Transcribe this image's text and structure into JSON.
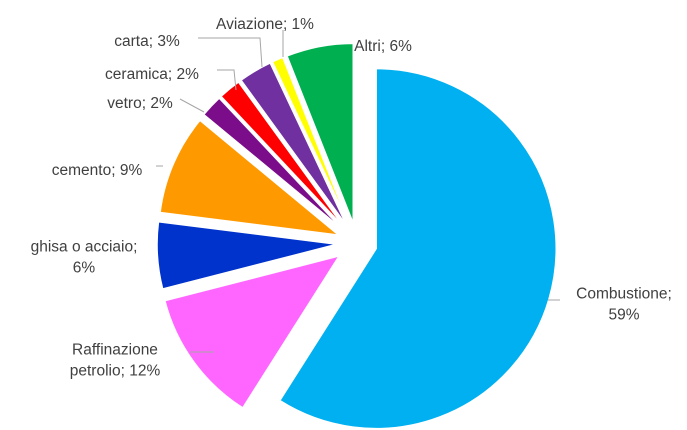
{
  "chart_data": {
    "type": "pie",
    "title": "",
    "slices": [
      {
        "name": "Combustione",
        "label_lines": [
          "Combustione;",
          "59%"
        ],
        "value": 59,
        "color": "#00b0f0"
      },
      {
        "name": "Raffinazione petrolio",
        "label_lines": [
          "Raffinazione",
          "petrolio; 12%"
        ],
        "value": 12,
        "color": "#ff66ff"
      },
      {
        "name": "ghisa o acciaio",
        "label_lines": [
          "ghisa o acciaio;",
          "6%"
        ],
        "value": 6,
        "color": "#0033cc"
      },
      {
        "name": "cemento",
        "label_lines": [
          "cemento; 9%"
        ],
        "value": 9,
        "color": "#ff9900"
      },
      {
        "name": "vetro",
        "label_lines": [
          "vetro; 2%"
        ],
        "value": 2,
        "color": "#7b0d8a"
      },
      {
        "name": "ceramica",
        "label_lines": [
          "ceramica; 2%"
        ],
        "value": 2,
        "color": "#ff0000"
      },
      {
        "name": "carta",
        "label_lines": [
          "carta; 3%"
        ],
        "value": 3,
        "color": "#7030a0"
      },
      {
        "name": "Aviazione",
        "label_lines": [
          "Aviazione; 1%"
        ],
        "value": 1,
        "color": "#ffff00"
      },
      {
        "name": "Altri",
        "label_lines": [
          "Altri; 6%"
        ],
        "value": 6,
        "color": "#00b050"
      }
    ]
  }
}
